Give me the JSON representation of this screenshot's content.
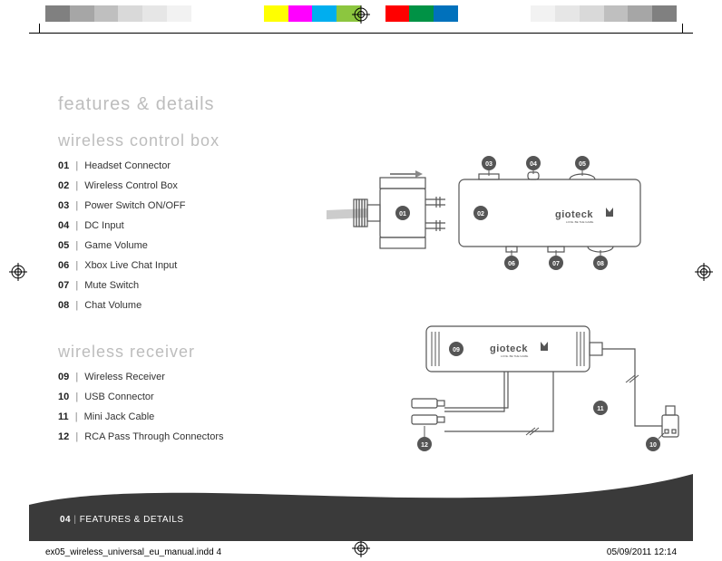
{
  "colorbar": [
    "#808080",
    "#a6a6a6",
    "#bfbfbf",
    "#d9d9d9",
    "#e6e6e6",
    "#f2f2f2",
    "#ffffff",
    "#ffffff",
    "#ffffff",
    "#ffff00",
    "#ff00ff",
    "#00aeef",
    "#8cc63f",
    "#ffffff",
    "#ff0000",
    "#009245",
    "#0071bc",
    "#ffffff",
    "#ffffff",
    "#ffffff",
    "#f2f2f2",
    "#e6e6e6",
    "#d9d9d9",
    "#bfbfbf",
    "#a6a6a6",
    "#808080"
  ],
  "page": {
    "title": "features & details",
    "section1": {
      "title": "wireless control box",
      "items": [
        {
          "num": "01",
          "label": "Headset Connector"
        },
        {
          "num": "02",
          "label": "Wireless Control Box"
        },
        {
          "num": "03",
          "label": "Power Switch ON/OFF"
        },
        {
          "num": "04",
          "label": "DC Input"
        },
        {
          "num": "05",
          "label": "Game Volume"
        },
        {
          "num": "06",
          "label": "Xbox Live Chat Input"
        },
        {
          "num": "07",
          "label": "Mute Switch"
        },
        {
          "num": "08",
          "label": "Chat Volume"
        }
      ]
    },
    "section2": {
      "title": "wireless receiver",
      "items": [
        {
          "num": "09",
          "label": "Wireless Receiver"
        },
        {
          "num": "10",
          "label": "USB Connector"
        },
        {
          "num": "11",
          "label": "Mini Jack Cable"
        },
        {
          "num": "12",
          "label": "RCA Pass Through Connectors"
        }
      ]
    },
    "footer": {
      "pagenum": "04",
      "label": "FEATURES & DETAILS"
    },
    "imprint": {
      "file": "ex05_wireless_universal_eu_manual.indd   4",
      "date": "05/09/2011   12:14"
    },
    "logo": "gioteck",
    "logo_sub": "LOVE. BE THE GAME.",
    "diagram1_style": {
      "stroke": "#555",
      "fill_light": "#cccccc",
      "bubble_fill": "#555555",
      "bubble_text": "#ffffff"
    },
    "diagram2_style": {
      "stroke": "#555",
      "fill_light": "#cccccc"
    }
  }
}
